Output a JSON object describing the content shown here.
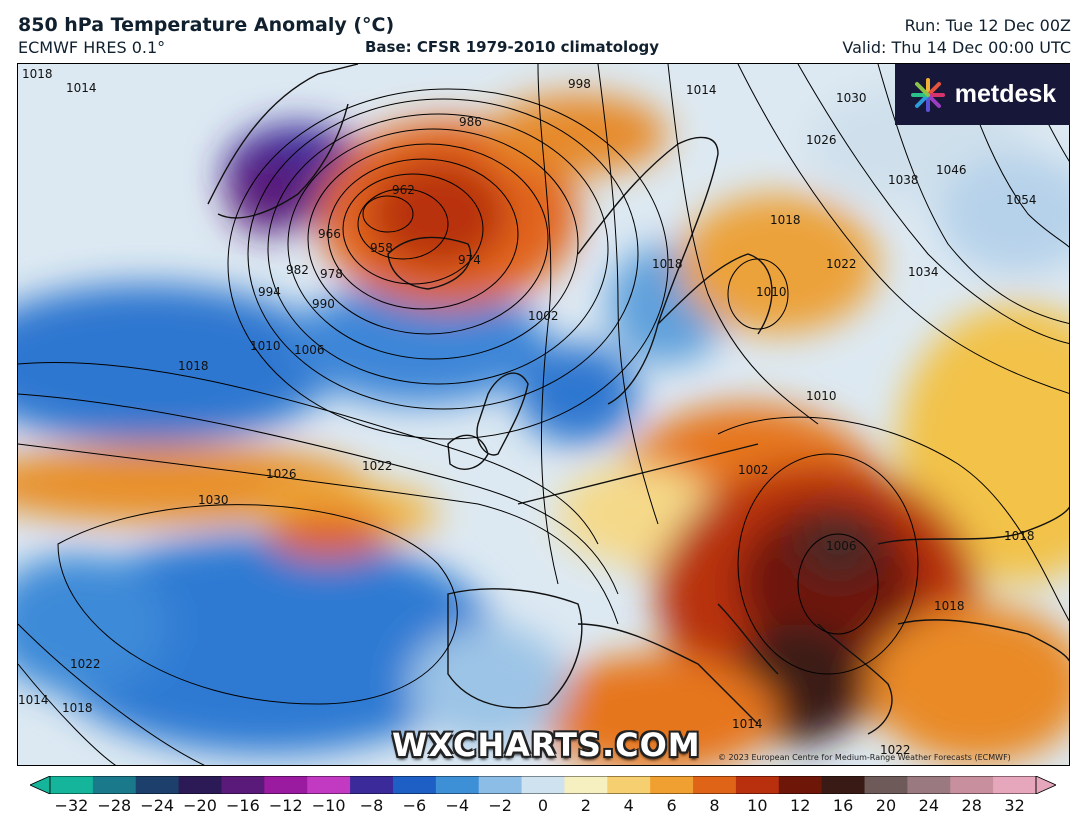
{
  "header": {
    "title": "850 hPa Temperature Anomaly (°C)",
    "model": "ECMWF HRES 0.1°",
    "base": "Base: CFSR 1979-2010 climatology",
    "run": "Run: Tue 12 Dec 00Z",
    "valid": "Valid: Thu 14 Dec 00:00 UTC"
  },
  "branding": {
    "logo_text": "metdesk",
    "watermark": "WXCHARTS.COM",
    "copyright": "© 2023 European Centre for Medium-Range Weather Forecasts (ECMWF)"
  },
  "isobar_labels": [
    "1018",
    "1014",
    "998",
    "1014",
    "1030",
    "1026",
    "1038",
    "1046",
    "1054",
    "986",
    "962",
    "966",
    "958",
    "974",
    "978",
    "982",
    "990",
    "994",
    "1006",
    "1010",
    "1018",
    "1002",
    "1018",
    "1010",
    "1018",
    "1022",
    "1034",
    "1022",
    "1026",
    "1030",
    "1022",
    "1014",
    "1018",
    "1014",
    "1002",
    "1006",
    "1010",
    "1018",
    "1018",
    "1022"
  ],
  "colorbar": {
    "ticks": [
      "−32",
      "−28",
      "−24",
      "−20",
      "−16",
      "−12",
      "−10",
      "−8",
      "−6",
      "−4",
      "−2",
      "0",
      "2",
      "4",
      "6",
      "8",
      "10",
      "12",
      "16",
      "20",
      "24",
      "28",
      "32"
    ],
    "colors": [
      "#14b59a",
      "#1a7a8c",
      "#1c3f6b",
      "#2b1a55",
      "#5a1a7a",
      "#9a1aa0",
      "#c23ac2",
      "#3a2a9a",
      "#1d5fc4",
      "#3d8fd6",
      "#8bbde6",
      "#cfe2ef",
      "#f6efc0",
      "#f6cf70",
      "#f0a030",
      "#e06418",
      "#b8300e",
      "#6e1608",
      "#3a1a14",
      "#6e5a58",
      "#9a7a80",
      "#c8909e",
      "#e6a6bc"
    ]
  },
  "map_colors": {
    "cold": "#2a6fd0",
    "warm": "#d84a14",
    "neutral": "#e8eef3",
    "land_line": "#111111",
    "isobar": "#000000"
  }
}
